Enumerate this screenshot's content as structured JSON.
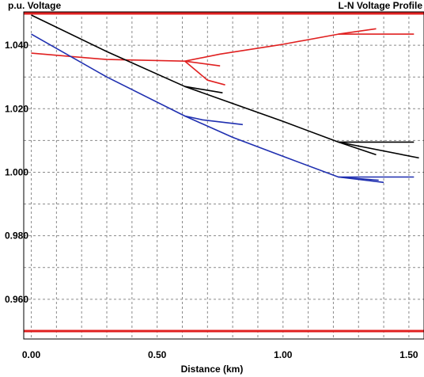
{
  "chart_data": {
    "type": "line",
    "title": "L-N Voltage Profile",
    "xlabel": "Distance (km)",
    "ylabel": "p.u. Voltage",
    "xlim": [
      -0.03,
      1.56
    ],
    "ylim": [
      0.9475,
      1.0505
    ],
    "x_ticks": [
      "0.00",
      "0.50",
      "1.00",
      "1.50"
    ],
    "x_tick_values": [
      0.0,
      0.5,
      1.0,
      1.5
    ],
    "y_ticks": [
      "1.040",
      "1.020",
      "1.000",
      "0.980",
      "0.960"
    ],
    "y_tick_values": [
      1.04,
      1.02,
      1.0,
      0.98,
      0.96
    ],
    "x_minor_step": 0.1,
    "y_minor_step": 0.01,
    "grid": true,
    "limit_lines": {
      "values": [
        1.05,
        0.95
      ],
      "color": "#e02020"
    },
    "series": [
      {
        "color": "#e02020",
        "segments": [
          [
            [
              0.0,
              1.0375
            ],
            [
              0.3,
              1.0355
            ],
            [
              0.61,
              1.035
            ]
          ],
          [
            [
              0.61,
              1.035
            ],
            [
              0.75,
              1.0372
            ],
            [
              1.0,
              1.0403
            ],
            [
              1.22,
              1.0435
            ],
            [
              1.52,
              1.0435
            ]
          ],
          [
            [
              1.22,
              1.0435
            ],
            [
              1.37,
              1.0452
            ]
          ],
          [
            [
              0.61,
              1.035
            ],
            [
              0.75,
              1.0335
            ]
          ],
          [
            [
              0.61,
              1.035
            ],
            [
              0.7,
              1.029
            ],
            [
              0.77,
              1.0275
            ]
          ]
        ]
      },
      {
        "color": "#000000",
        "segments": [
          [
            [
              0.0,
              1.0495
            ],
            [
              0.3,
              1.038
            ],
            [
              0.61,
              1.027
            ],
            [
              1.0,
              1.016
            ],
            [
              1.22,
              1.0095
            ],
            [
              1.54,
              1.0045
            ]
          ],
          [
            [
              1.22,
              1.0095
            ],
            [
              1.52,
              1.0095
            ]
          ],
          [
            [
              1.22,
              1.0095
            ],
            [
              1.37,
              1.0055
            ]
          ],
          [
            [
              0.61,
              1.027
            ],
            [
              0.76,
              1.025
            ]
          ]
        ]
      },
      {
        "color": "#1f2fb0",
        "segments": [
          [
            [
              0.0,
              1.0435
            ],
            [
              0.3,
              1.03
            ],
            [
              0.61,
              1.0177
            ],
            [
              0.8,
              1.011
            ],
            [
              1.0,
              1.005
            ],
            [
              1.22,
              0.9985
            ],
            [
              1.52,
              0.9985
            ]
          ],
          [
            [
              1.22,
              0.9985
            ],
            [
              1.4,
              0.9968
            ]
          ],
          [
            [
              1.22,
              0.9985
            ],
            [
              1.38,
              0.9975
            ]
          ],
          [
            [
              0.61,
              1.0177
            ],
            [
              0.68,
              1.0165
            ],
            [
              0.84,
              1.015
            ]
          ]
        ]
      }
    ]
  }
}
